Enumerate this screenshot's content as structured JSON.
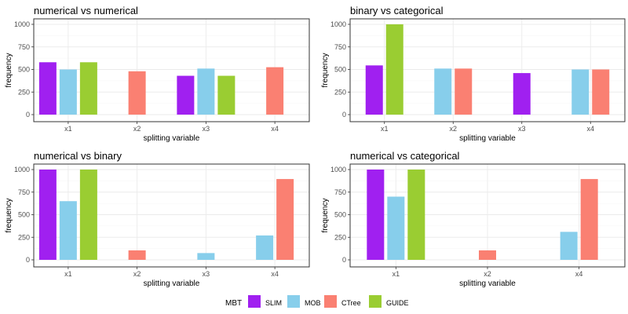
{
  "colors": {
    "SLIM": "#A020F0",
    "MOB": "#87CEEB",
    "CTree": "#FA8072",
    "GUIDE": "#9ACD32",
    "grid": "#EBEBEB",
    "border": "#333333"
  },
  "legend": {
    "title": "MBT",
    "position": "bottom",
    "entries": [
      "SLIM",
      "MOB",
      "CTree",
      "GUIDE"
    ]
  },
  "chart_data": [
    {
      "type": "bar",
      "title": "numerical vs numerical",
      "xlabel": "splitting variable",
      "ylabel": "frequency",
      "ylim": [
        0,
        1000
      ],
      "yticks": [
        0,
        250,
        500,
        750,
        1000
      ],
      "grid": true,
      "categories": [
        "x1",
        "x2",
        "x3",
        "x4"
      ],
      "series": [
        {
          "name": "SLIM",
          "values": [
            580,
            null,
            430,
            null
          ]
        },
        {
          "name": "MOB",
          "values": [
            500,
            null,
            510,
            null
          ]
        },
        {
          "name": "CTree",
          "values": [
            null,
            480,
            null,
            525
          ]
        },
        {
          "name": "GUIDE",
          "values": [
            580,
            null,
            430,
            null
          ]
        }
      ]
    },
    {
      "type": "bar",
      "title": "binary vs categorical",
      "xlabel": "splitting variable",
      "ylabel": "frequency",
      "ylim": [
        0,
        1000
      ],
      "yticks": [
        0,
        250,
        500,
        750,
        1000
      ],
      "grid": true,
      "categories": [
        "x1",
        "x2",
        "x3",
        "x4"
      ],
      "series": [
        {
          "name": "SLIM",
          "values": [
            545,
            null,
            460,
            null
          ]
        },
        {
          "name": "MOB",
          "values": [
            null,
            510,
            null,
            500
          ]
        },
        {
          "name": "CTree",
          "values": [
            null,
            510,
            null,
            500
          ]
        },
        {
          "name": "GUIDE",
          "values": [
            1000,
            null,
            null,
            null
          ]
        }
      ]
    },
    {
      "type": "bar",
      "title": "numerical vs binary",
      "xlabel": "splitting variable",
      "ylabel": "frequency",
      "ylim": [
        0,
        1000
      ],
      "yticks": [
        0,
        250,
        500,
        750,
        1000
      ],
      "grid": true,
      "categories": [
        "x1",
        "x2",
        "x3",
        "x4"
      ],
      "series": [
        {
          "name": "SLIM",
          "values": [
            1000,
            null,
            null,
            null
          ]
        },
        {
          "name": "MOB",
          "values": [
            650,
            null,
            75,
            270
          ]
        },
        {
          "name": "CTree",
          "values": [
            null,
            105,
            null,
            895
          ]
        },
        {
          "name": "GUIDE",
          "values": [
            1000,
            null,
            null,
            null
          ]
        }
      ]
    },
    {
      "type": "bar",
      "title": "numerical vs categorical",
      "xlabel": "splitting variable",
      "ylabel": "frequency",
      "ylim": [
        0,
        1000
      ],
      "yticks": [
        0,
        250,
        500,
        750,
        1000
      ],
      "grid": true,
      "categories": [
        "x1",
        "x2",
        "x4"
      ],
      "series": [
        {
          "name": "SLIM",
          "values": [
            1000,
            null,
            null
          ]
        },
        {
          "name": "MOB",
          "values": [
            700,
            null,
            310
          ]
        },
        {
          "name": "CTree",
          "values": [
            null,
            105,
            895
          ]
        },
        {
          "name": "GUIDE",
          "values": [
            1000,
            null,
            null
          ]
        }
      ]
    }
  ]
}
